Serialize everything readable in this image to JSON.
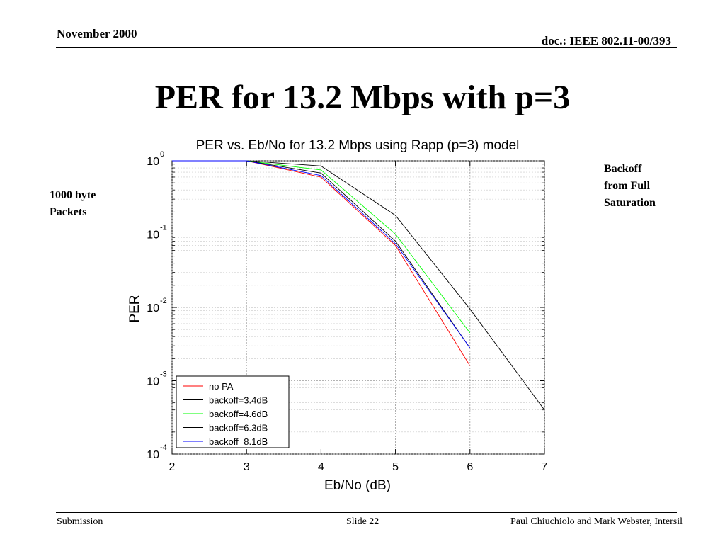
{
  "header": {
    "date": "November 2000",
    "doc": "doc.: IEEE 802.11-00/393"
  },
  "slide": {
    "title": "PER for 13.2 Mbps with p=3",
    "left_note": [
      "1000 byte",
      "Packets"
    ],
    "right_note": [
      "Backoff",
      "from Full",
      "Saturation"
    ]
  },
  "footer": {
    "left": "Submission",
    "center": "Slide 22",
    "right": "Paul Chiuchiolo and Mark Webster, Intersil"
  },
  "chart_data": {
    "type": "line",
    "title": "PER vs. Eb/No for 13.2 Mbps using Rapp (p=3) model",
    "xlabel": "Eb/No (dB)",
    "ylabel": "PER",
    "xlim": [
      2,
      7
    ],
    "ylim": [
      0.0001,
      1
    ],
    "yscale": "log",
    "grid": true,
    "legend_position": "bottom-left",
    "x_ticks": [
      "2",
      "3",
      "4",
      "5",
      "6",
      "7"
    ],
    "y_ticks": [
      {
        "base": "10",
        "exp": "0",
        "value": 1
      },
      {
        "base": "10",
        "exp": "-1",
        "value": 0.1
      },
      {
        "base": "10",
        "exp": "-2",
        "value": 0.01
      },
      {
        "base": "10",
        "exp": "-3",
        "value": 0.001
      },
      {
        "base": "10",
        "exp": "-4",
        "value": 0.0001
      }
    ],
    "series": [
      {
        "name": "no PA",
        "color": "#ff0000",
        "x": [
          2,
          3,
          4,
          5,
          6
        ],
        "y": [
          1,
          1,
          0.6,
          0.07,
          0.0016
        ]
      },
      {
        "name": "backoff=3.4dB",
        "color": "#000000",
        "x": [
          2,
          3,
          4,
          5,
          6,
          7
        ],
        "y": [
          1,
          1,
          0.85,
          0.18,
          0.0095,
          0.0004
        ]
      },
      {
        "name": "backoff=4.6dB",
        "color": "#00ff00",
        "x": [
          2,
          3,
          4,
          5,
          6
        ],
        "y": [
          1,
          1,
          0.75,
          0.1,
          0.0045
        ]
      },
      {
        "name": "backoff=6.3dB",
        "color": "#000000",
        "x": [
          2,
          3,
          4,
          5,
          6
        ],
        "y": [
          1,
          1,
          0.68,
          0.08,
          0.0028
        ]
      },
      {
        "name": "backoff=8.1dB",
        "color": "#0000ff",
        "x": [
          2,
          3,
          4,
          5,
          6
        ],
        "y": [
          1,
          1,
          0.63,
          0.074,
          0.0028
        ]
      }
    ]
  }
}
